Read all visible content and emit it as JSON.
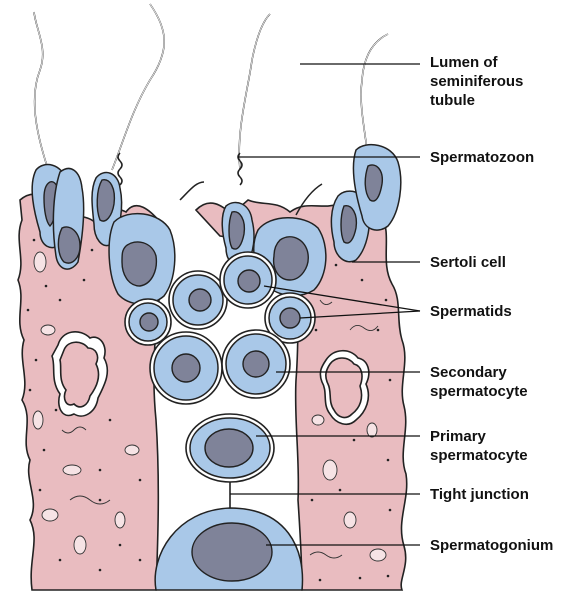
{
  "labels": {
    "lumen_line1": "Lumen of",
    "lumen_line2": "seminiferous",
    "lumen_line3": "tubule",
    "spermatozoon": "Spermatozoon",
    "sertoli": "Sertoli cell",
    "spermatids": "Spermatids",
    "secondary_line1": "Secondary",
    "secondary_line2": "spermatocyte",
    "primary_line1": "Primary",
    "primary_line2": "spermatocyte",
    "tight_junction": "Tight junction",
    "spermatogonium": "Spermatogonium"
  },
  "colors": {
    "sertoli_cytoplasm": "#e9bcc0",
    "germ_cell": "#a9c8e8",
    "nucleus": "#7f8399",
    "outline": "#222222"
  }
}
